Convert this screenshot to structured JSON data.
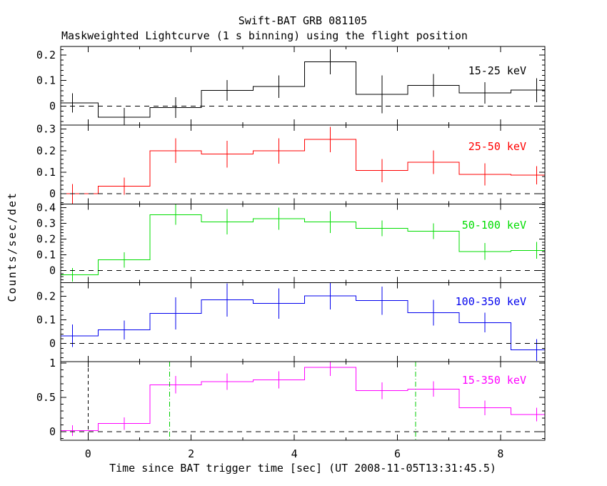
{
  "figure": {
    "title": "Swift-BAT GRB 081105",
    "subtitle": "Maskweighted Lightcurve (1 s binning) using the flight position",
    "xlabel": "Time since BAT trigger time [sec] (UT 2008-11-05T13:31:45.5)",
    "ylabel": "Counts/sec/det"
  },
  "chart_data": {
    "type": "line",
    "subtype": "step-histogram-lightcurve-stack",
    "title": "Swift-BAT GRB 081105",
    "subtitle": "Maskweighted Lightcurve (1 s binning) using the flight position",
    "xlabel": "Time since BAT trigger time [sec] (UT 2008-11-05T13:31:45.5)",
    "ylabel": "Counts/sec/det",
    "xlim": [
      -0.53,
      8.86
    ],
    "x_major_ticks": [
      0,
      2,
      4,
      6,
      8
    ],
    "x_major_tick_labels": [
      "0",
      "2",
      "4",
      "6",
      "8"
    ],
    "x_minor_ticks": [
      1,
      3,
      5,
      7
    ],
    "bin_width_sec": 1.0,
    "bin_edges": [
      -0.8,
      0.2,
      1.2,
      2.2,
      3.2,
      4.2,
      5.2,
      6.2,
      7.2,
      8.2,
      9.2
    ],
    "bin_centers": [
      -0.3,
      0.7,
      1.7,
      2.7,
      3.7,
      4.7,
      5.7,
      6.7,
      7.7,
      8.7
    ],
    "grid": false,
    "zero_line_style": "dashed",
    "panels": [
      {
        "label": "15-25 keV",
        "color": "#000000",
        "ylim": [
          -0.075,
          0.233
        ],
        "y_major_ticks": [
          0,
          0.1,
          0.2
        ],
        "y_major_tick_labels": [
          "0",
          "0.1",
          "0.2"
        ],
        "y_minor_step": 0.02,
        "values": [
          0.012,
          -0.043,
          -0.006,
          0.061,
          0.076,
          0.173,
          0.046,
          0.081,
          0.051,
          0.062
        ],
        "errors": [
          0.038,
          0.036,
          0.04,
          0.04,
          0.044,
          0.049,
          0.074,
          0.045,
          0.042,
          0.047
        ]
      },
      {
        "label": "25-50 keV",
        "color": "#ff0000",
        "ylim": [
          -0.047,
          0.318
        ],
        "y_major_ticks": [
          0,
          0.1,
          0.2,
          0.3
        ],
        "y_major_tick_labels": [
          "0",
          "0.1",
          "0.2",
          "0.3"
        ],
        "y_minor_step": 0.02,
        "values": [
          0.0,
          0.035,
          0.2,
          0.184,
          0.199,
          0.252,
          0.108,
          0.146,
          0.09,
          0.086
        ],
        "errors": [
          0.045,
          0.04,
          0.057,
          0.062,
          0.059,
          0.059,
          0.054,
          0.055,
          0.051,
          0.042
        ]
      },
      {
        "label": "50-100 keV",
        "color": "#00dd00",
        "ylim": [
          -0.078,
          0.423
        ],
        "y_major_ticks": [
          0,
          0.1,
          0.2,
          0.3,
          0.4
        ],
        "y_major_tick_labels": [
          "0",
          "0.1",
          "0.2",
          "0.3",
          "0.4"
        ],
        "y_minor_step": 0.02,
        "values": [
          -0.027,
          0.067,
          0.355,
          0.31,
          0.33,
          0.308,
          0.267,
          0.25,
          0.121,
          0.128
        ],
        "errors": [
          0.043,
          0.048,
          0.065,
          0.08,
          0.07,
          0.07,
          0.05,
          0.05,
          0.053,
          0.053
        ]
      },
      {
        "label": "100-350 keV",
        "color": "#0000ee",
        "ylim": [
          -0.076,
          0.258
        ],
        "y_major_ticks": [
          0,
          0.1,
          0.2
        ],
        "y_major_tick_labels": [
          "0",
          "0.1",
          "0.2"
        ],
        "y_minor_step": 0.02,
        "values": [
          0.033,
          0.058,
          0.128,
          0.185,
          0.17,
          0.202,
          0.182,
          0.131,
          0.089,
          -0.027
        ],
        "errors": [
          0.048,
          0.04,
          0.068,
          0.071,
          0.064,
          0.058,
          0.06,
          0.054,
          0.042,
          0.046
        ]
      },
      {
        "label": "15-350 keV",
        "color": "#ff00ff",
        "ylim": [
          -0.125,
          1.023
        ],
        "y_major_ticks": [
          0,
          0.5,
          1
        ],
        "y_major_tick_labels": [
          "0",
          "0.5",
          "1"
        ],
        "y_minor_step": 0.1,
        "values": [
          0.014,
          0.118,
          0.684,
          0.729,
          0.753,
          0.937,
          0.597,
          0.622,
          0.347,
          0.25
        ],
        "errors": [
          0.079,
          0.092,
          0.128,
          0.122,
          0.125,
          0.122,
          0.122,
          0.113,
          0.108,
          0.1
        ],
        "markers": {
          "trigger_line": {
            "x": 0,
            "style": "dashed",
            "color": "#000000"
          },
          "t90_lines": {
            "x": [
              1.58,
              6.35
            ],
            "style": "dash-dot",
            "color": "#00cc00"
          }
        }
      }
    ]
  }
}
